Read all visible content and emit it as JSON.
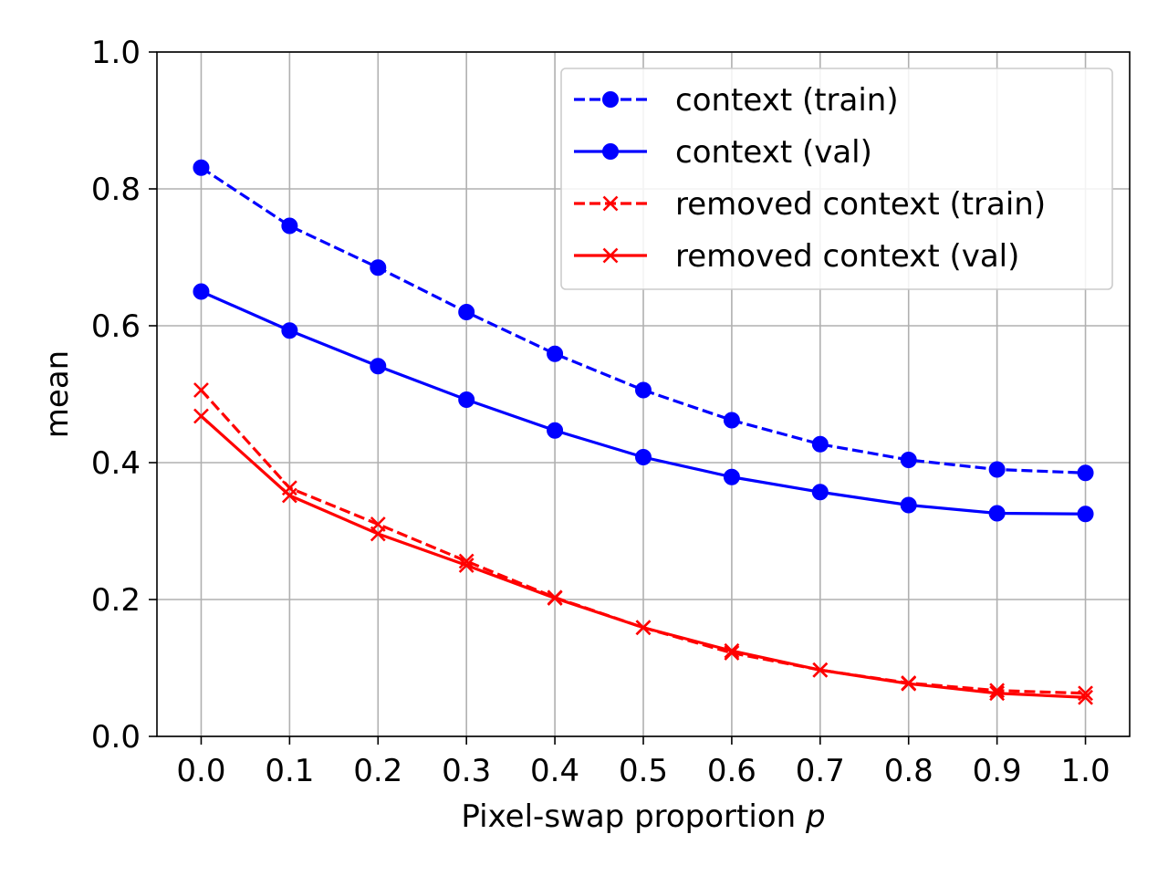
{
  "chart_data": {
    "type": "line",
    "title": "",
    "xlabel": "Pixel-swap proportion",
    "xlabel_var": "p",
    "ylabel": "mean",
    "xlim": [
      -0.05,
      1.05
    ],
    "ylim": [
      0.0,
      1.0
    ],
    "x": [
      0.0,
      0.1,
      0.2,
      0.3,
      0.4,
      0.5,
      0.6,
      0.7,
      0.8,
      0.9,
      1.0
    ],
    "x_tick_labels": [
      "0.0",
      "0.1",
      "0.2",
      "0.3",
      "0.4",
      "0.5",
      "0.6",
      "0.7",
      "0.8",
      "0.9",
      "1.0"
    ],
    "y_ticks": [
      0.0,
      0.2,
      0.4,
      0.6,
      0.8,
      1.0
    ],
    "y_tick_labels": [
      "0.0",
      "0.2",
      "0.4",
      "0.6",
      "0.8",
      "1.0"
    ],
    "grid": true,
    "legend_position": "top-right",
    "series": [
      {
        "name": "context (train)",
        "color": "#0000ff",
        "line_style": "dashed",
        "marker": "circle",
        "values": [
          0.831,
          0.746,
          0.685,
          0.62,
          0.559,
          0.506,
          0.462,
          0.427,
          0.404,
          0.39,
          0.385
        ]
      },
      {
        "name": "context (val)",
        "color": "#0000ff",
        "line_style": "solid",
        "marker": "circle",
        "values": [
          0.65,
          0.593,
          0.541,
          0.492,
          0.447,
          0.408,
          0.379,
          0.357,
          0.338,
          0.326,
          0.325
        ]
      },
      {
        "name": "removed context (train)",
        "color": "#ff0000",
        "line_style": "dashed",
        "marker": "x",
        "values": [
          0.506,
          0.363,
          0.31,
          0.256,
          0.203,
          0.159,
          0.122,
          0.097,
          0.078,
          0.067,
          0.063
        ]
      },
      {
        "name": "removed context (val)",
        "color": "#ff0000",
        "line_style": "solid",
        "marker": "x",
        "values": [
          0.468,
          0.352,
          0.296,
          0.25,
          0.202,
          0.159,
          0.125,
          0.097,
          0.077,
          0.063,
          0.057
        ]
      }
    ]
  }
}
